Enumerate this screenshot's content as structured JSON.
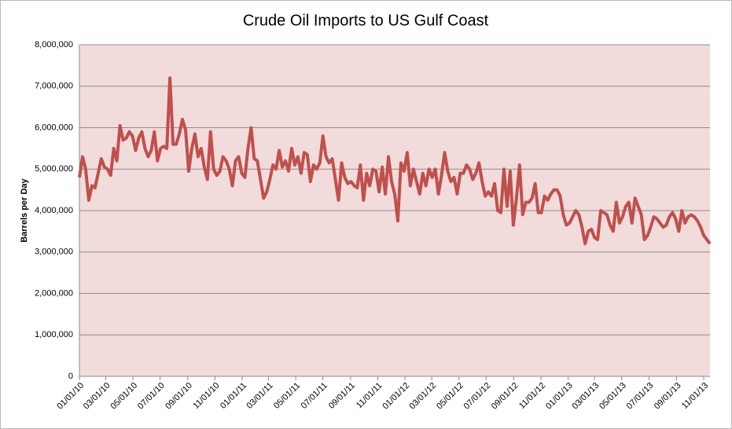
{
  "chart_data": {
    "type": "line",
    "title": "Crude Oil Imports to US Gulf Coast",
    "y_label": "Barrels per Day",
    "x": [
      "01/01/10",
      "01/08/10",
      "01/15/10",
      "01/22/10",
      "01/29/10",
      "02/05/10",
      "02/12/10",
      "02/19/10",
      "02/26/10",
      "03/05/10",
      "03/12/10",
      "03/19/10",
      "03/26/10",
      "04/02/10",
      "04/09/10",
      "04/16/10",
      "04/23/10",
      "04/30/10",
      "05/07/10",
      "05/14/10",
      "05/21/10",
      "05/28/10",
      "06/04/10",
      "06/11/10",
      "06/18/10",
      "06/25/10",
      "07/02/10",
      "07/09/10",
      "07/16/10",
      "07/23/10",
      "07/30/10",
      "08/06/10",
      "08/13/10",
      "08/20/10",
      "08/27/10",
      "09/03/10",
      "09/10/10",
      "09/17/10",
      "09/24/10",
      "10/01/10",
      "10/08/10",
      "10/15/10",
      "10/22/10",
      "10/29/10",
      "11/05/10",
      "11/12/10",
      "11/19/10",
      "11/26/10",
      "12/03/10",
      "12/10/10",
      "12/17/10",
      "12/24/10",
      "12/31/10",
      "01/07/11",
      "01/14/11",
      "01/21/11",
      "01/28/11",
      "02/04/11",
      "02/11/11",
      "02/18/11",
      "02/25/11",
      "03/04/11",
      "03/11/11",
      "03/18/11",
      "03/25/11",
      "04/01/11",
      "04/08/11",
      "04/15/11",
      "04/22/11",
      "04/29/11",
      "05/06/11",
      "05/13/11",
      "05/20/11",
      "05/27/11",
      "06/03/11",
      "06/10/11",
      "06/17/11",
      "06/24/11",
      "07/01/11",
      "07/08/11",
      "07/15/11",
      "07/22/11",
      "07/29/11",
      "08/05/11",
      "08/12/11",
      "08/19/11",
      "08/26/11",
      "09/02/11",
      "09/09/11",
      "09/16/11",
      "09/23/11",
      "09/30/11",
      "10/07/11",
      "10/14/11",
      "10/21/11",
      "10/28/11",
      "11/04/11",
      "11/11/11",
      "11/18/11",
      "11/25/11",
      "12/02/11",
      "12/09/11",
      "12/16/11",
      "12/23/11",
      "12/30/11",
      "01/06/12",
      "01/13/12",
      "01/20/12",
      "01/27/12",
      "02/03/12",
      "02/10/12",
      "02/17/12",
      "02/24/12",
      "03/02/12",
      "03/09/12",
      "03/16/12",
      "03/23/12",
      "03/30/12",
      "04/06/12",
      "04/13/12",
      "04/20/12",
      "04/27/12",
      "05/04/12",
      "05/11/12",
      "05/18/12",
      "05/25/12",
      "06/01/12",
      "06/08/12",
      "06/15/12",
      "06/22/12",
      "06/29/12",
      "07/06/12",
      "07/13/12",
      "07/20/12",
      "07/27/12",
      "08/03/12",
      "08/10/12",
      "08/17/12",
      "08/24/12",
      "08/31/12",
      "09/07/12",
      "09/14/12",
      "09/21/12",
      "09/28/12",
      "10/05/12",
      "10/12/12",
      "10/19/12",
      "10/26/12",
      "11/02/12",
      "11/09/12",
      "11/16/12",
      "11/23/12",
      "11/30/12",
      "12/07/12",
      "12/14/12",
      "12/21/12",
      "12/28/12",
      "01/04/13",
      "01/11/13",
      "01/18/13",
      "01/25/13",
      "02/01/13",
      "02/08/13",
      "02/15/13",
      "02/22/13",
      "03/01/13",
      "03/08/13",
      "03/15/13",
      "03/22/13",
      "03/29/13",
      "04/05/13",
      "04/12/13",
      "04/19/13",
      "04/26/13",
      "05/03/13",
      "05/10/13",
      "05/17/13",
      "05/24/13",
      "05/31/13",
      "06/07/13",
      "06/14/13",
      "06/21/13",
      "06/28/13",
      "07/05/13",
      "07/12/13",
      "07/19/13",
      "07/26/13",
      "08/02/13",
      "08/09/13",
      "08/16/13",
      "08/23/13",
      "08/30/13",
      "09/06/13",
      "09/13/13",
      "09/20/13",
      "09/27/13",
      "10/04/13",
      "10/11/13",
      "10/18/13",
      "10/25/13",
      "11/01/13",
      "11/08/13",
      "11/15/13"
    ],
    "series": [
      {
        "name": "Crude Oil Imports",
        "color": "#c0504d",
        "values": [
          4800000,
          5300000,
          5000000,
          4250000,
          4600000,
          4550000,
          4900000,
          5250000,
          5050000,
          5000000,
          4850000,
          5500000,
          5200000,
          6050000,
          5700000,
          5750000,
          5900000,
          5800000,
          5450000,
          5750000,
          5900000,
          5500000,
          5300000,
          5450000,
          5900000,
          5200000,
          5500000,
          5550000,
          5500000,
          7200000,
          5600000,
          5600000,
          5850000,
          6200000,
          5950000,
          4950000,
          5500000,
          5850000,
          5300000,
          5500000,
          5050000,
          4750000,
          5900000,
          5000000,
          4850000,
          4950000,
          5300000,
          5200000,
          5000000,
          4600000,
          5200000,
          5300000,
          4900000,
          4800000,
          5500000,
          6000000,
          5250000,
          5200000,
          4750000,
          4300000,
          4450000,
          4750000,
          5100000,
          5000000,
          5450000,
          5050000,
          5200000,
          4950000,
          5500000,
          5100000,
          5300000,
          4900000,
          5400000,
          5350000,
          4700000,
          5100000,
          5000000,
          5150000,
          5800000,
          5300000,
          5150000,
          5250000,
          4750000,
          4250000,
          5150000,
          4800000,
          4650000,
          4700000,
          4600000,
          4550000,
          5100000,
          4250000,
          4900000,
          4600000,
          5000000,
          4950000,
          4450000,
          5050000,
          4400000,
          5300000,
          4700000,
          4400000,
          3750000,
          5150000,
          4950000,
          5400000,
          4600000,
          5000000,
          4700000,
          4400000,
          4900000,
          4600000,
          5000000,
          4800000,
          5000000,
          4400000,
          4850000,
          5400000,
          4950000,
          4700000,
          4800000,
          4400000,
          4900000,
          4900000,
          5100000,
          5000000,
          4750000,
          4900000,
          5150000,
          4700000,
          4350000,
          4450000,
          4350000,
          4650000,
          4000000,
          3950000,
          5000000,
          4100000,
          4950000,
          3650000,
          4300000,
          5100000,
          3900000,
          4200000,
          4200000,
          4300000,
          4650000,
          3950000,
          3950000,
          4350000,
          4250000,
          4400000,
          4500000,
          4500000,
          4350000,
          3900000,
          3650000,
          3700000,
          3850000,
          4000000,
          3900000,
          3600000,
          3200000,
          3500000,
          3550000,
          3350000,
          3300000,
          4000000,
          3950000,
          3900000,
          3650000,
          3500000,
          4200000,
          3700000,
          3850000,
          4100000,
          4200000,
          3700000,
          4300000,
          4100000,
          3900000,
          3300000,
          3400000,
          3600000,
          3850000,
          3800000,
          3700000,
          3600000,
          3650000,
          3850000,
          3950000,
          3800000,
          3500000,
          4000000,
          3700000,
          3850000,
          3900000,
          3850000,
          3750000,
          3600000,
          3400000,
          3300000,
          3200000
        ]
      }
    ],
    "xlim": [
      "01/01/10",
      "11/15/13"
    ],
    "xticks": [
      "01/01/10",
      "03/01/10",
      "05/01/10",
      "07/01/10",
      "09/01/10",
      "11/01/10",
      "01/01/11",
      "03/01/11",
      "05/01/11",
      "07/01/11",
      "09/01/11",
      "11/01/11",
      "01/01/12",
      "03/01/12",
      "05/01/12",
      "07/01/12",
      "09/01/12",
      "11/01/12",
      "01/01/13",
      "03/01/13",
      "05/01/13",
      "07/01/13",
      "09/01/13",
      "11/01/13"
    ],
    "ylim": [
      0,
      8000000
    ],
    "yticks": [
      0,
      {
        "value": 1000000,
        "label": "1,000,000"
      },
      {
        "value": 2000000,
        "label": "2,000,000"
      },
      {
        "value": 3000000,
        "label": "3,000,000"
      },
      {
        "value": 4000000,
        "label": "4,000,000"
      },
      {
        "value": 5000000,
        "label": "5,000,000"
      },
      {
        "value": 6000000,
        "label": "6,000,000"
      },
      {
        "value": 7000000,
        "label": "7,000,000"
      },
      {
        "value": 8000000,
        "label": "8,000,000"
      }
    ],
    "grid": true
  }
}
